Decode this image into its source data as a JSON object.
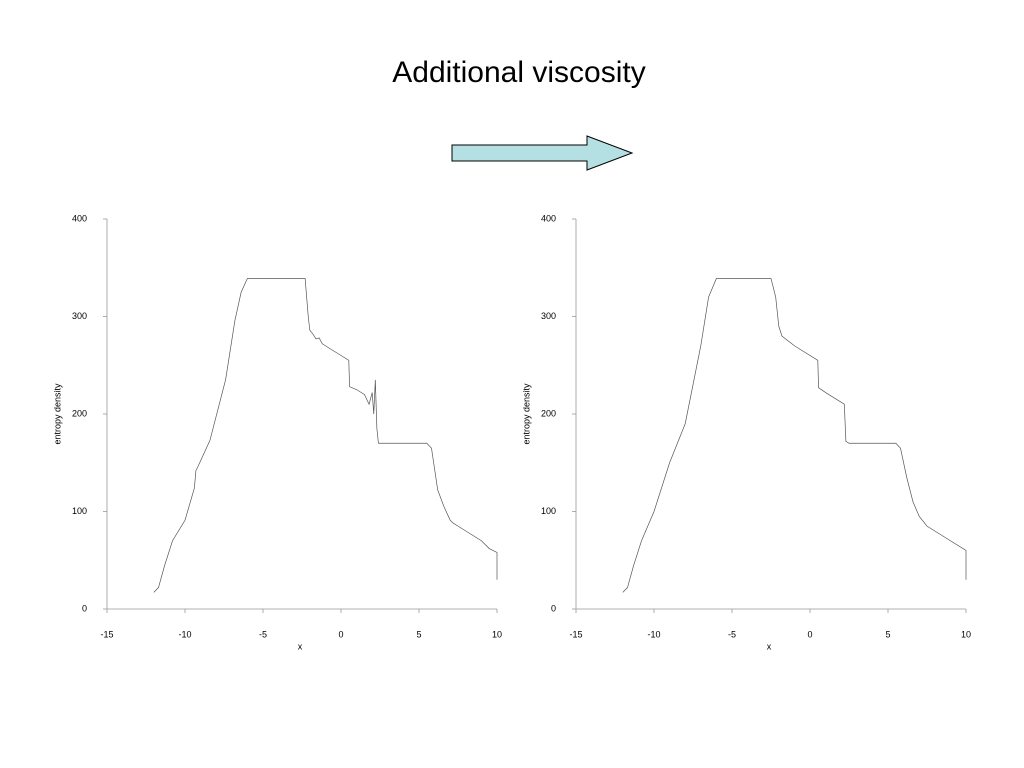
{
  "title": "Additional viscosity",
  "chart_data": [
    {
      "type": "line",
      "xlabel": "x",
      "ylabel": "entropy density",
      "color": "#555555",
      "xlim": [
        -15,
        10
      ],
      "ylim": [
        0,
        400
      ],
      "xticks": [
        -15,
        -10,
        -5,
        0,
        5,
        10
      ],
      "yticks": [
        0,
        100,
        200,
        300,
        400
      ],
      "x": [
        -12.0,
        -11.7,
        -11.3,
        -10.8,
        -10.0,
        -9.4,
        -9.3,
        -9.2,
        -8.4,
        -7.4,
        -6.8,
        -6.4,
        -6.0,
        -2.3,
        -2.1,
        -2.0,
        -1.8,
        -1.6,
        -1.4,
        -1.2,
        -1.0,
        -0.5,
        0.0,
        0.5,
        0.55,
        1.0,
        1.5,
        1.8,
        2.0,
        2.1,
        2.2,
        2.3,
        2.4,
        2.5,
        5.5,
        5.8,
        6.2,
        6.6,
        7.0,
        7.2,
        7.5,
        8.0,
        9.0,
        9.5,
        10.0,
        10.0
      ],
      "values": [
        17,
        22,
        45,
        70,
        91,
        124,
        142,
        145,
        173,
        235,
        296,
        325,
        339,
        339,
        300,
        286,
        282,
        277,
        278,
        272,
        270,
        265,
        260,
        255,
        228,
        225,
        220,
        210,
        222,
        200,
        235,
        185,
        170,
        170,
        170,
        165,
        122,
        105,
        91,
        88,
        85,
        80,
        70,
        62,
        58,
        30
      ]
    },
    {
      "type": "line",
      "xlabel": "x",
      "ylabel": "entropy density",
      "color": "#555555",
      "xlim": [
        -15,
        10
      ],
      "ylim": [
        0,
        400
      ],
      "xticks": [
        -15,
        -10,
        -5,
        0,
        5,
        10
      ],
      "yticks": [
        0,
        100,
        200,
        300,
        400
      ],
      "x": [
        -12.0,
        -11.7,
        -11.3,
        -10.8,
        -10.0,
        -9.0,
        -8.0,
        -7.0,
        -6.5,
        -6.0,
        -2.5,
        -2.2,
        -2.0,
        -1.8,
        -1.0,
        0.5,
        0.55,
        1.0,
        2.2,
        2.3,
        2.5,
        5.5,
        5.8,
        6.2,
        6.6,
        7.0,
        7.5,
        8.5,
        10.0,
        10.0
      ],
      "values": [
        17,
        22,
        45,
        70,
        100,
        150,
        190,
        270,
        320,
        339,
        339,
        320,
        290,
        280,
        270,
        255,
        227,
        222,
        210,
        172,
        170,
        170,
        165,
        135,
        110,
        95,
        85,
        75,
        60,
        30
      ]
    }
  ]
}
